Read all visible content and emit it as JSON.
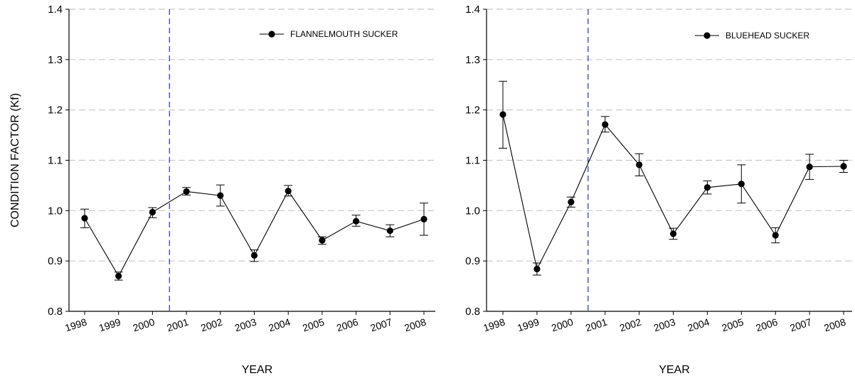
{
  "chart_data": [
    {
      "type": "line",
      "x": [
        "1998",
        "1999",
        "2000",
        "2001",
        "2002",
        "2003",
        "2004",
        "2005",
        "2006",
        "2007",
        "2008"
      ],
      "series": [
        {
          "name": "FLANNELMOUTH SUCKER",
          "values": [
            0.985,
            0.87,
            0.997,
            1.038,
            1.03,
            0.911,
            1.039,
            0.941,
            0.979,
            0.96,
            0.983
          ],
          "error_low": [
            0.966,
            0.862,
            0.986,
            1.031,
            1.009,
            0.899,
            1.029,
            0.933,
            0.969,
            0.948,
            0.951
          ],
          "error_high": [
            1.003,
            0.878,
            1.006,
            1.046,
            1.051,
            0.922,
            1.05,
            0.948,
            0.991,
            0.972,
            1.015
          ]
        }
      ],
      "xlabel": "YEAR",
      "ylabel": "CONDITION FACTOR (Kf)",
      "ylim": [
        0.8,
        1.4
      ],
      "yticks": [
        "0.8",
        "0.9",
        "1.0",
        "1.1",
        "1.2",
        "1.3",
        "1.4"
      ],
      "grid": "horizontal dashed",
      "reference_line_between": [
        "2000",
        "2001"
      ],
      "legend_position": "top-right",
      "colors": {
        "series": "#000000",
        "grid": "#c8c8c8",
        "reference": "#2a2acc"
      }
    },
    {
      "type": "line",
      "x": [
        "1998",
        "1999",
        "2000",
        "2001",
        "2002",
        "2003",
        "2004",
        "2005",
        "2006",
        "2007",
        "2008"
      ],
      "series": [
        {
          "name": "BLUEHEAD SUCKER",
          "values": [
            1.191,
            0.884,
            1.017,
            1.171,
            1.091,
            0.954,
            1.046,
            1.053,
            0.951,
            1.087,
            1.088
          ],
          "error_low": [
            1.124,
            0.872,
            1.007,
            1.156,
            1.069,
            0.943,
            1.033,
            1.015,
            0.936,
            1.062,
            1.076
          ],
          "error_high": [
            1.257,
            0.896,
            1.027,
            1.187,
            1.113,
            0.965,
            1.059,
            1.091,
            0.966,
            1.112,
            1.1
          ]
        }
      ],
      "xlabel": "YEAR",
      "ylabel": "",
      "ylim": [
        0.8,
        1.4
      ],
      "yticks": [
        "0.8",
        "0.9",
        "1.0",
        "1.1",
        "1.2",
        "1.3",
        "1.4"
      ],
      "grid": "horizontal dashed",
      "reference_line_between": [
        "2000",
        "2001"
      ],
      "legend_position": "top-right",
      "colors": {
        "series": "#000000",
        "grid": "#c8c8c8",
        "reference": "#2a2acc"
      }
    }
  ]
}
